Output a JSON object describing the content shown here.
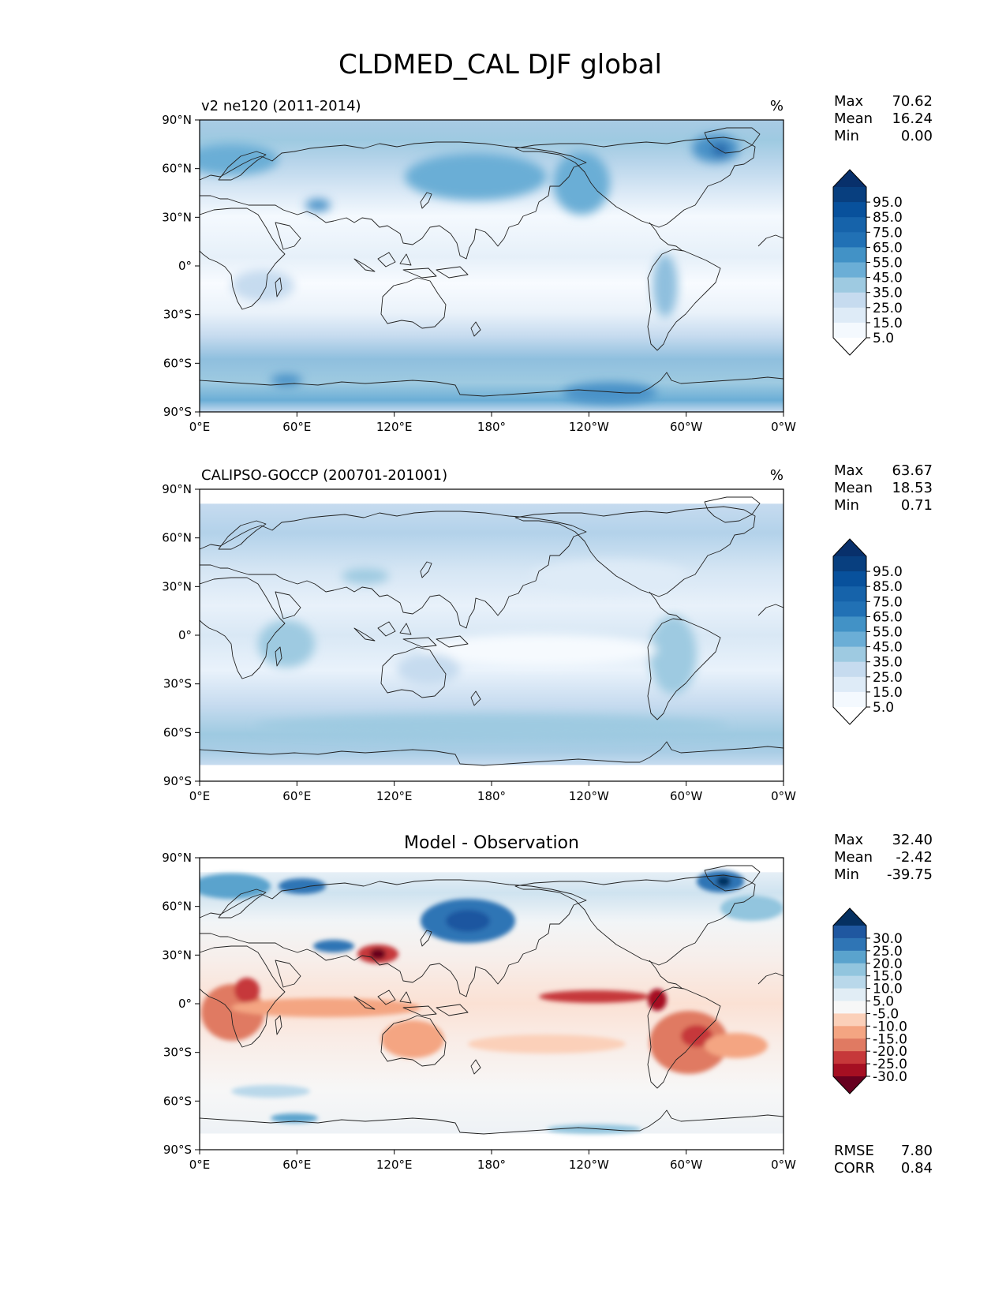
{
  "title": "CLDMED_CAL DJF global",
  "x_ticks": [
    "0°E",
    "60°E",
    "120°E",
    "180°",
    "120°W",
    "60°W",
    "0°W"
  ],
  "y_ticks": [
    "90°N",
    "60°N",
    "30°N",
    "0°",
    "30°S",
    "60°S",
    "90°S"
  ],
  "panels": [
    {
      "id": "model",
      "left_title": "v2 ne120 (2011-2014)",
      "center_title": "",
      "units": "%",
      "stats": [
        {
          "label": "Max",
          "value": "70.62"
        },
        {
          "label": "Mean",
          "value": "16.24"
        },
        {
          "label": "Min",
          "value": "0.00"
        }
      ],
      "colorbar_labels": [
        "95.0",
        "85.0",
        "75.0",
        "65.0",
        "55.0",
        "45.0",
        "35.0",
        "25.0",
        "15.0",
        "5.0"
      ],
      "colorbar_colors": [
        "#ffffff",
        "#f4f9fe",
        "#deebf7",
        "#c6dbef",
        "#9ecae1",
        "#6baed6",
        "#4292c6",
        "#2171b5",
        "#1663aa",
        "#08519c",
        "#083f7f",
        "#08306b"
      ],
      "colormap": "Blues"
    },
    {
      "id": "obs",
      "left_title": "CALIPSO-GOCCP (200701-201001)",
      "center_title": "",
      "units": "%",
      "stats": [
        {
          "label": "Max",
          "value": "63.67"
        },
        {
          "label": "Mean",
          "value": "18.53"
        },
        {
          "label": "Min",
          "value": "0.71"
        }
      ],
      "colorbar_labels": [
        "95.0",
        "85.0",
        "75.0",
        "65.0",
        "55.0",
        "45.0",
        "35.0",
        "25.0",
        "15.0",
        "5.0"
      ],
      "colorbar_colors": [
        "#ffffff",
        "#f4f9fe",
        "#deebf7",
        "#c6dbef",
        "#9ecae1",
        "#6baed6",
        "#4292c6",
        "#2171b5",
        "#1663aa",
        "#08519c",
        "#083f7f",
        "#08306b"
      ],
      "colormap": "Blues"
    },
    {
      "id": "diff",
      "left_title": "",
      "center_title": "Model - Observation",
      "units": "",
      "stats": [
        {
          "label": "Max",
          "value": "32.40"
        },
        {
          "label": "Mean",
          "value": "-2.42"
        },
        {
          "label": "Min",
          "value": "-39.75"
        }
      ],
      "colorbar_labels": [
        "30.0",
        "25.0",
        "20.0",
        "15.0",
        "10.0",
        "5.0",
        "-5.0",
        "-10.0",
        "-15.0",
        "-20.0",
        "-25.0",
        "-30.0"
      ],
      "colorbar_colors": [
        "#67001f",
        "#a50f22",
        "#c6383a",
        "#e07a62",
        "#f4a582",
        "#fbd0b9",
        "#f7f7f7",
        "#e1edf5",
        "#b9d8ea",
        "#92c5de",
        "#5aa3cd",
        "#2f75b5",
        "#1f57a0",
        "#053061"
      ],
      "colormap": "RdBu_r",
      "bottom_stats": [
        {
          "label": "RMSE",
          "value": "7.80"
        },
        {
          "label": "CORR",
          "value": "0.84"
        }
      ]
    }
  ]
}
